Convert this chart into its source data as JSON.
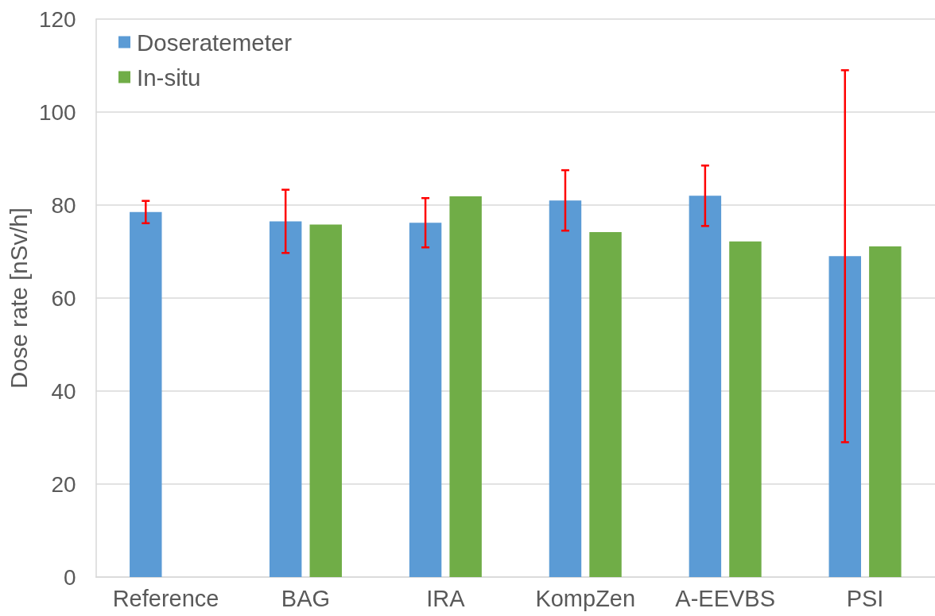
{
  "chart_data": {
    "type": "bar",
    "ylabel": "Dose rate [nSv/h]",
    "categories": [
      "Reference",
      "BAG",
      "IRA",
      "KompZen",
      "A-EEVBS",
      "PSI"
    ],
    "series": [
      {
        "name": "Doseratemeter",
        "color": "#5b9bd5",
        "values": [
          78.5,
          76.5,
          76.2,
          81.0,
          82.0,
          69.0
        ],
        "errors": [
          2.4,
          6.8,
          5.3,
          6.5,
          6.5,
          40
        ]
      },
      {
        "name": "In-situ",
        "color": "#70ad47",
        "values": [
          null,
          75.8,
          81.9,
          74.2,
          72.2,
          71.1
        ]
      }
    ],
    "ylim": [
      0,
      120
    ],
    "yticks": [
      0,
      20,
      40,
      60,
      80,
      100,
      120
    ],
    "grid": "y",
    "legend": "top left"
  }
}
